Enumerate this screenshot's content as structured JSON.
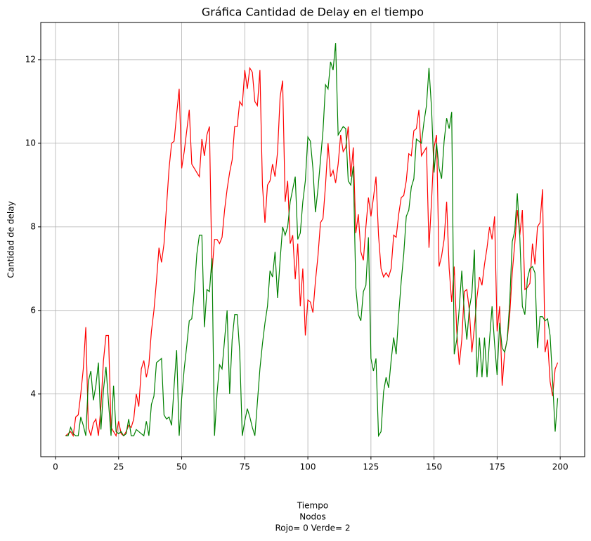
{
  "chart_data": {
    "type": "line",
    "title": "Gráfica Cantidad de Delay en el tiempo",
    "y_label": "Cantidad de delay",
    "x_label": [
      "Tiempo",
      "Nodos",
      "Rojo= 0  Verde= 2"
    ],
    "xlim": [
      -5.85,
      209.7
    ],
    "ylim": [
      2.5,
      12.89
    ],
    "xticks": [
      0,
      25,
      50,
      75,
      100,
      125,
      150,
      175,
      200
    ],
    "yticks": [
      4,
      6,
      8,
      10,
      12
    ],
    "grid": true,
    "x": [
      4,
      5,
      6,
      7,
      8,
      9,
      10,
      11,
      12,
      13,
      14,
      15,
      16,
      17,
      18,
      19,
      20,
      21,
      22,
      23,
      24,
      25,
      26,
      27,
      28,
      29,
      30,
      31,
      32,
      33,
      34,
      35,
      36,
      37,
      38,
      39,
      40,
      41,
      42,
      43,
      44,
      45,
      46,
      47,
      48,
      49,
      50,
      51,
      52,
      53,
      54,
      55,
      56,
      57,
      58,
      59,
      60,
      61,
      62,
      63,
      64,
      65,
      66,
      67,
      68,
      69,
      70,
      71,
      72,
      73,
      74,
      75,
      76,
      77,
      78,
      79,
      80,
      81,
      82,
      83,
      84,
      85,
      86,
      87,
      88,
      89,
      90,
      91,
      92,
      93,
      94,
      95,
      96,
      97,
      98,
      99,
      100,
      101,
      102,
      103,
      104,
      105,
      106,
      107,
      108,
      109,
      110,
      111,
      112,
      113,
      114,
      115,
      116,
      117,
      118,
      119,
      120,
      121,
      122,
      123,
      124,
      125,
      126,
      127,
      128,
      129,
      130,
      131,
      132,
      133,
      134,
      135,
      136,
      137,
      138,
      139,
      140,
      141,
      142,
      143,
      144,
      145,
      146,
      147,
      148,
      149,
      150,
      151,
      152,
      153,
      154,
      155,
      156,
      157,
      158,
      159,
      160,
      161,
      162,
      163,
      164,
      165,
      166,
      167,
      168,
      169,
      170,
      171,
      172,
      173,
      174,
      175,
      176,
      177,
      178,
      179,
      180,
      181,
      182,
      183,
      184,
      185,
      186,
      187,
      188,
      189,
      190,
      191,
      192,
      193,
      194,
      195,
      196,
      197,
      198,
      199
    ],
    "series": [
      {
        "color": "#ff0000",
        "values": [
          3.0,
          3.05,
          3.1,
          3.0,
          3.45,
          3.5,
          4.0,
          4.6,
          5.6,
          3.2,
          3.0,
          3.3,
          3.4,
          3.0,
          3.7,
          4.8,
          5.4,
          5.4,
          3.2,
          3.1,
          3.0,
          3.35,
          3.05,
          3.0,
          3.1,
          3.25,
          3.2,
          3.4,
          4.0,
          3.7,
          4.6,
          4.8,
          4.4,
          4.7,
          5.5,
          6.0,
          6.7,
          7.5,
          7.15,
          7.6,
          8.5,
          9.4,
          10.0,
          10.05,
          10.7,
          11.3,
          9.4,
          9.8,
          10.3,
          10.8,
          9.5,
          9.4,
          9.3,
          9.2,
          10.1,
          9.7,
          10.2,
          10.4,
          6.9,
          7.7,
          7.7,
          7.6,
          7.75,
          8.4,
          8.9,
          9.3,
          9.6,
          10.4,
          10.4,
          11.0,
          10.9,
          11.75,
          11.3,
          11.8,
          11.7,
          11.0,
          10.9,
          11.75,
          9.0,
          8.1,
          9.0,
          9.1,
          9.5,
          9.2,
          9.8,
          11.1,
          11.5,
          8.6,
          9.1,
          7.6,
          7.8,
          6.75,
          7.6,
          6.1,
          7.0,
          5.4,
          6.25,
          6.2,
          5.95,
          6.7,
          7.3,
          8.1,
          8.2,
          9.0,
          10.0,
          9.2,
          9.35,
          9.05,
          9.5,
          10.2,
          9.8,
          9.9,
          10.4,
          9.2,
          9.9,
          7.85,
          8.3,
          7.4,
          7.2,
          8.0,
          8.7,
          8.25,
          8.7,
          9.2,
          7.8,
          7.0,
          6.8,
          6.9,
          6.8,
          7.0,
          7.8,
          7.75,
          8.3,
          8.7,
          8.75,
          9.1,
          9.75,
          9.7,
          10.3,
          10.35,
          10.8,
          9.7,
          9.8,
          9.9,
          7.5,
          8.6,
          9.9,
          10.2,
          7.05,
          7.3,
          7.7,
          8.6,
          7.0,
          6.2,
          7.05,
          5.5,
          4.7,
          5.3,
          6.45,
          6.5,
          6.0,
          5.0,
          5.6,
          6.3,
          6.8,
          6.6,
          7.1,
          7.5,
          8.0,
          7.7,
          8.25,
          5.5,
          6.1,
          4.2,
          5.0,
          5.3,
          5.9,
          6.9,
          7.6,
          8.4,
          7.8,
          8.4,
          6.5,
          6.55,
          6.65,
          7.6,
          7.1,
          8.0,
          8.1,
          8.9,
          5.0,
          5.3,
          4.3,
          3.95,
          4.6,
          4.75
        ]
      },
      {
        "color": "#008000",
        "values": [
          3.0,
          3.0,
          3.2,
          3.05,
          3.0,
          3.0,
          3.45,
          3.25,
          3.0,
          4.3,
          4.55,
          3.85,
          4.2,
          4.75,
          3.15,
          4.1,
          4.65,
          3.8,
          3.0,
          4.2,
          3.1,
          3.05,
          3.1,
          3.0,
          3.05,
          3.4,
          3.0,
          3.0,
          3.15,
          3.1,
          3.05,
          3.0,
          3.35,
          3.0,
          3.75,
          3.95,
          4.75,
          4.8,
          4.85,
          3.5,
          3.4,
          3.45,
          3.25,
          4.2,
          5.05,
          3.0,
          3.9,
          4.6,
          5.15,
          5.75,
          5.8,
          6.45,
          7.35,
          7.8,
          7.8,
          5.6,
          6.5,
          6.45,
          7.25,
          3.0,
          4.0,
          4.7,
          4.6,
          5.3,
          6.0,
          4.0,
          5.3,
          5.9,
          5.9,
          5.0,
          3.0,
          3.35,
          3.65,
          3.45,
          3.2,
          3.0,
          3.8,
          4.6,
          5.2,
          5.7,
          6.1,
          6.95,
          6.8,
          7.4,
          6.3,
          7.2,
          8.0,
          7.8,
          8.0,
          8.6,
          8.9,
          9.2,
          7.7,
          7.85,
          8.6,
          9.1,
          10.15,
          10.05,
          9.4,
          8.35,
          8.9,
          9.6,
          10.3,
          11.4,
          11.3,
          11.95,
          11.75,
          12.4,
          10.2,
          10.3,
          10.4,
          10.35,
          9.1,
          9.0,
          9.45,
          6.55,
          5.9,
          5.75,
          6.45,
          6.6,
          7.75,
          4.85,
          4.55,
          4.85,
          3.0,
          3.1,
          4.05,
          4.4,
          4.15,
          4.8,
          5.35,
          4.95,
          5.9,
          6.7,
          7.35,
          8.25,
          8.4,
          8.95,
          9.15,
          10.1,
          10.05,
          10.0,
          10.5,
          10.9,
          11.8,
          10.85,
          9.3,
          10.0,
          9.4,
          9.15,
          10.05,
          10.6,
          10.35,
          10.75,
          4.95,
          5.3,
          6.05,
          6.95,
          5.95,
          5.3,
          6.05,
          6.4,
          7.45,
          4.4,
          5.35,
          4.4,
          5.35,
          4.4,
          5.3,
          6.1,
          5.2,
          4.45,
          5.7,
          5.1,
          5.0,
          5.3,
          6.2,
          7.65,
          7.9,
          8.8,
          7.75,
          6.1,
          5.9,
          6.75,
          7.0,
          7.05,
          6.9,
          5.1,
          5.85,
          5.85,
          5.75,
          5.8,
          5.4,
          4.3,
          3.1,
          3.9
        ]
      }
    ]
  }
}
